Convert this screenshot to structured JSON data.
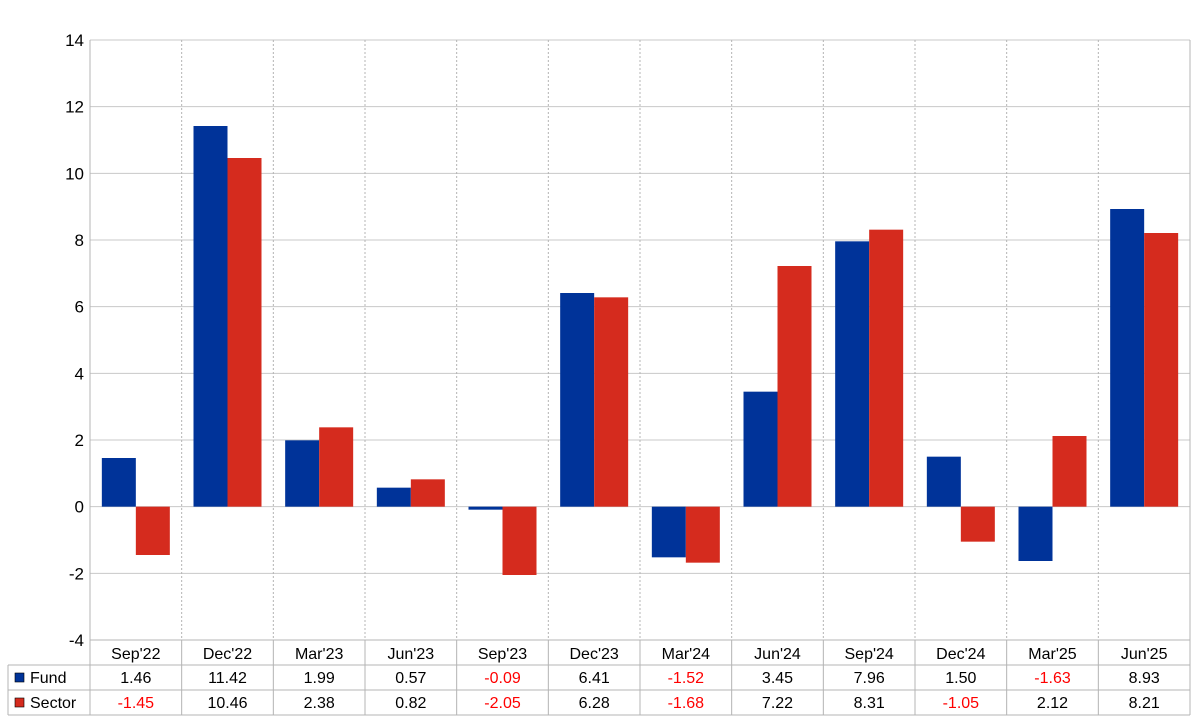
{
  "chart_data": {
    "type": "bar",
    "title": "",
    "xlabel": "",
    "ylabel": "",
    "ylim": [
      -4,
      14
    ],
    "yticks": [
      -4,
      -2,
      0,
      2,
      4,
      6,
      8,
      10,
      12,
      14
    ],
    "grid": true,
    "legend": "data-table-bottom",
    "categories": [
      "Sep'22",
      "Dec'22",
      "Mar'23",
      "Jun'23",
      "Sep'23",
      "Dec'23",
      "Mar'24",
      "Jun'24",
      "Sep'24",
      "Dec'24",
      "Mar'25",
      "Jun'25"
    ],
    "series": [
      {
        "name": "Fund",
        "color": "#003399",
        "values": [
          1.46,
          11.42,
          1.99,
          0.57,
          -0.09,
          6.41,
          -1.52,
          3.45,
          7.96,
          1.5,
          -1.63,
          8.93
        ],
        "labels": [
          "1.46",
          "11.42",
          "1.99",
          "0.57",
          "-0.09",
          "6.41",
          "-1.52",
          "3.45",
          "7.96",
          "1.50",
          "-1.63",
          "8.93"
        ]
      },
      {
        "name": "Sector",
        "color": "#d52b1e",
        "values": [
          -1.45,
          10.46,
          2.38,
          0.82,
          -2.05,
          6.28,
          -1.68,
          7.22,
          8.31,
          -1.05,
          2.12,
          8.21
        ],
        "labels": [
          "-1.45",
          "10.46",
          "2.38",
          "0.82",
          "-2.05",
          "6.28",
          "-1.68",
          "7.22",
          "8.31",
          "-1.05",
          "2.12",
          "8.21"
        ]
      }
    ],
    "negative_value_color": "#ff0000"
  }
}
